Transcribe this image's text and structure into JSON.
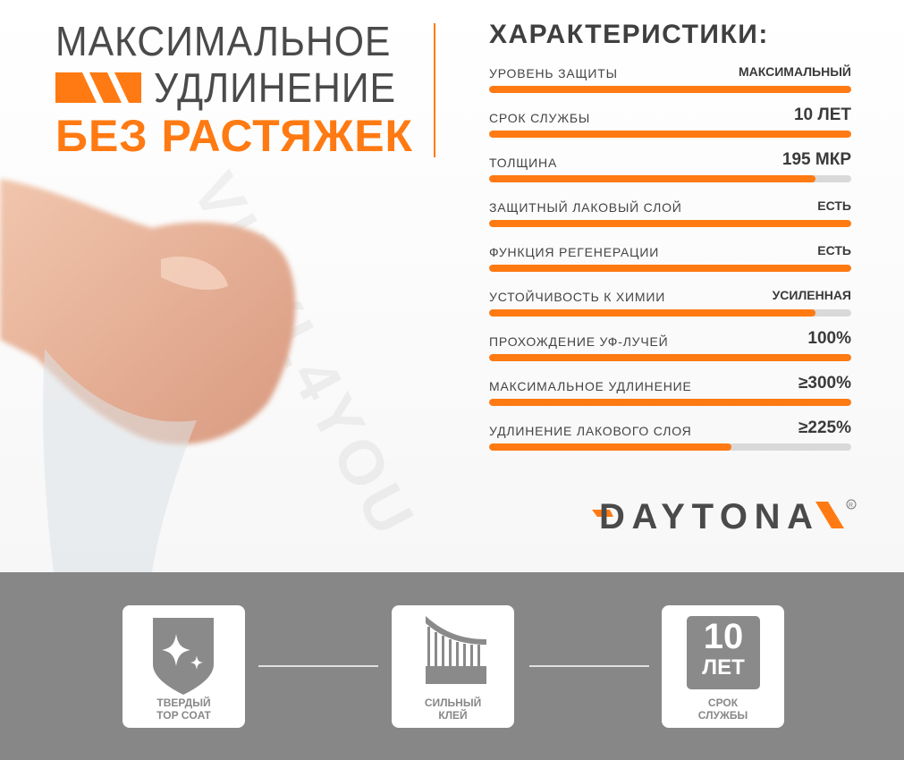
{
  "headline": {
    "line1": "МАКСИМАЛЬНОЕ",
    "line2": "УДЛИНЕНИЕ",
    "line3": "БЕЗ РАСТЯЖЕК"
  },
  "specs_title": "ХАРАКТЕРИСТИКИ:",
  "specs": [
    {
      "label": "УРОВЕНЬ ЗАЩИТЫ",
      "value": "МАКСИМАЛЬНЫЙ",
      "level": 1.0
    },
    {
      "label": "СРОК СЛУЖБЫ",
      "value": "10 ЛЕТ",
      "level": 1.0
    },
    {
      "label": "ТОЛЩИНА",
      "value": "195 МКР",
      "level": 0.9
    },
    {
      "label": "ЗАЩИТНЫЙ ЛАКОВЫЙ СЛОЙ",
      "value": "ЕСТЬ",
      "level": 1.0
    },
    {
      "label": "ФУНКЦИЯ РЕГЕНЕРАЦИИ",
      "value": "ЕСТЬ",
      "level": 1.0
    },
    {
      "label": "УСТОЙЧИВОСТЬ К ХИМИИ",
      "value": "УСИЛЕННАЯ",
      "level": 0.9
    },
    {
      "label": "ПРОХОЖДЕНИЕ УФ-ЛУЧЕЙ",
      "value": "100%",
      "level": 1.0
    },
    {
      "label": "МАКСИМАЛЬНОЕ УДЛИНЕНИЕ",
      "value": "≥300%",
      "level": 1.0
    },
    {
      "label": "УДЛИНЕНИЕ ЛАКОВОГО СЛОЯ",
      "value": "≥225%",
      "level": 0.67
    }
  ],
  "logo": {
    "text": "DAYTONA",
    "mark": "®"
  },
  "watermark": "VINYL4YOU",
  "features": [
    {
      "icon": "shield-sparkle-icon",
      "caption1": "ТВЕРДЫЙ",
      "caption2": "TOP COAT"
    },
    {
      "icon": "adhesive-icon",
      "caption1": "СИЛЬНЫЙ",
      "caption2": "КЛЕЙ"
    },
    {
      "icon": "ten-years-icon",
      "badge_num": "10",
      "badge_unit": "ЛЕТ",
      "caption1": "СРОК",
      "caption2": "СЛУЖБЫ"
    }
  ],
  "colors": {
    "accent": "#ff7a12",
    "text": "#444444",
    "bottom_bg": "#878787",
    "bar_track": "#d9d9d9"
  }
}
